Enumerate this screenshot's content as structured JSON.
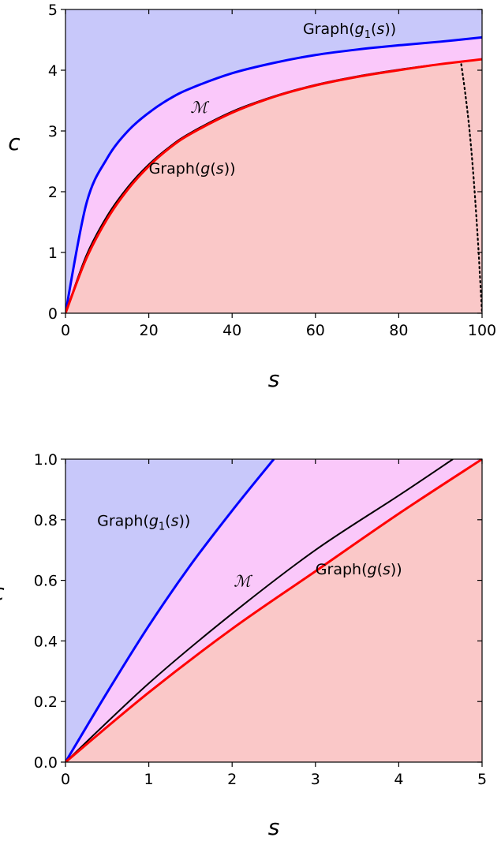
{
  "chart_data": [
    {
      "type": "line",
      "xlabel": "s",
      "ylabel": "c",
      "xlim": [
        0,
        100
      ],
      "ylim": [
        0,
        5
      ],
      "xticks": [
        "0",
        "20",
        "40",
        "60",
        "80",
        "100"
      ],
      "yticks": [
        "0",
        "1",
        "2",
        "3",
        "4",
        "5"
      ],
      "colors": {
        "upper": "#c8c8fa",
        "middle": "#fac8fa",
        "lower": "#fac8c8",
        "g1": "#0000ff",
        "g": "#ff0000",
        "M": "#000000",
        "dotted": "#000000"
      },
      "series": [
        {
          "name": "Graph(g1(s))",
          "style": "solid",
          "color": "#0000ff",
          "x": [
            0,
            5,
            10,
            15,
            20,
            25,
            30,
            40,
            50,
            60,
            70,
            80,
            90,
            100
          ],
          "y": [
            0,
            1.8,
            2.55,
            3.0,
            3.3,
            3.53,
            3.7,
            3.95,
            4.12,
            4.25,
            4.34,
            4.41,
            4.47,
            4.54
          ]
        },
        {
          "name": "M",
          "style": "solid",
          "color": "#000000",
          "x": [
            0,
            5,
            10,
            15,
            20,
            25,
            30,
            40,
            50,
            60,
            70,
            80,
            90,
            100
          ],
          "y": [
            0,
            0.95,
            1.6,
            2.08,
            2.45,
            2.74,
            2.97,
            3.32,
            3.57,
            3.76,
            3.9,
            4.01,
            4.1,
            4.18
          ]
        },
        {
          "name": "Graph(g(s))",
          "style": "solid",
          "color": "#ff0000",
          "x": [
            0,
            5,
            10,
            15,
            20,
            25,
            30,
            40,
            50,
            60,
            70,
            80,
            90,
            100
          ],
          "y": [
            0,
            0.9,
            1.55,
            2.04,
            2.42,
            2.72,
            2.95,
            3.3,
            3.56,
            3.75,
            3.89,
            4.0,
            4.1,
            4.18
          ]
        },
        {
          "name": "",
          "style": "dotted",
          "color": "#000000",
          "x": [
            95,
            96,
            97,
            98,
            99,
            99.5,
            100
          ],
          "y": [
            4.1,
            3.6,
            3.0,
            2.2,
            1.2,
            0.6,
            0
          ]
        }
      ],
      "annotations": [
        {
          "text_parts": [
            "Graph(",
            "g",
            "1",
            "(",
            "s",
            "))"
          ],
          "x": 57,
          "y": 4.6
        },
        {
          "text_parts": [
            "Graph(",
            "g",
            "(",
            "s",
            "))"
          ],
          "x": 20,
          "y": 2.3
        },
        {
          "script": "ℳ",
          "x": 30,
          "y": 3.3
        }
      ]
    },
    {
      "type": "line",
      "xlabel": "s",
      "ylabel": "c",
      "xlim": [
        0,
        5
      ],
      "ylim": [
        0,
        1
      ],
      "xticks": [
        "0",
        "1",
        "2",
        "3",
        "4",
        "5"
      ],
      "yticks": [
        "0.0",
        "0.2",
        "0.4",
        "0.6",
        "0.8",
        "1.0"
      ],
      "colors": {
        "upper": "#c8c8fa",
        "middle": "#fac8fa",
        "lower": "#fac8c8",
        "g1": "#0000ff",
        "g": "#ff0000",
        "M": "#000000"
      },
      "series": [
        {
          "name": "Graph(g1(s))",
          "style": "solid",
          "color": "#0000ff",
          "x": [
            0,
            0.5,
            1.0,
            1.5,
            2.0,
            2.5
          ],
          "y": [
            0,
            0.23,
            0.45,
            0.65,
            0.83,
            1.0
          ]
        },
        {
          "name": "M",
          "style": "solid",
          "color": "#000000",
          "x": [
            0,
            1,
            2,
            3,
            4,
            4.65
          ],
          "y": [
            0,
            0.26,
            0.49,
            0.7,
            0.88,
            1.0
          ]
        },
        {
          "name": "Graph(g(s))",
          "style": "solid",
          "color": "#ff0000",
          "x": [
            0,
            1,
            2,
            3,
            4,
            5
          ],
          "y": [
            0,
            0.23,
            0.44,
            0.63,
            0.82,
            1.0
          ]
        }
      ],
      "annotations": [
        {
          "text_parts": [
            "Graph(",
            "g",
            "1",
            "(",
            "s",
            "))"
          ],
          "x": 0.38,
          "y": 0.78
        },
        {
          "text_parts": [
            "Graph(",
            "g",
            "(",
            "s",
            "))"
          ],
          "x": 3.0,
          "y": 0.62
        },
        {
          "script": "ℳ",
          "x": 2.02,
          "y": 0.58
        }
      ]
    }
  ]
}
